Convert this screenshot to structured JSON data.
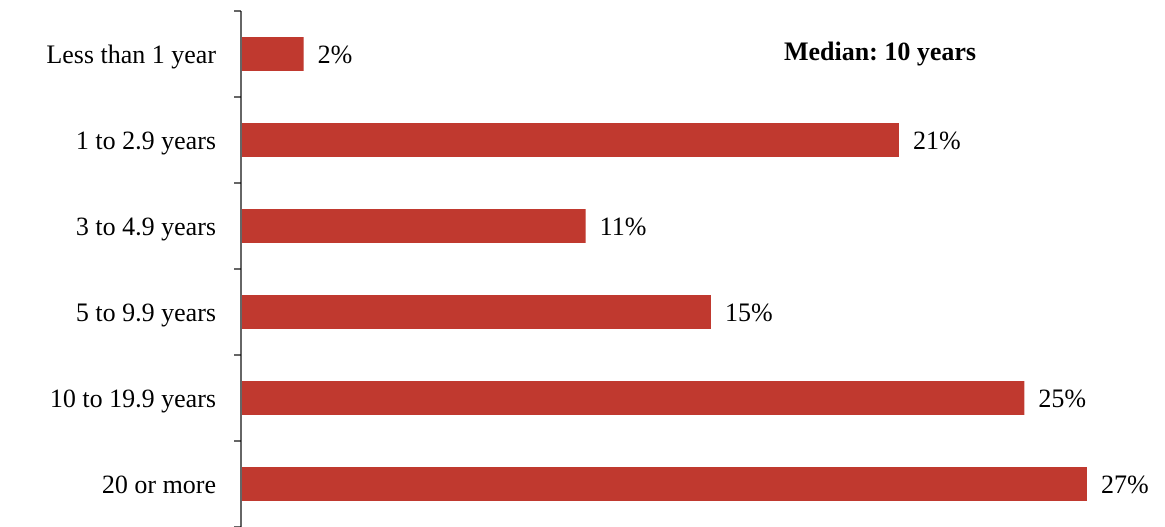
{
  "chart_data": {
    "type": "bar",
    "orientation": "horizontal",
    "categories": [
      "Less than 1 year",
      "1 to 2.9 years",
      "3 to 4.9 years",
      "5 to 9.9 years",
      "10 to 19.9 years",
      "20 or more"
    ],
    "values": [
      2,
      21,
      11,
      15,
      25,
      27
    ],
    "value_labels": [
      "2%",
      "21%",
      "11%",
      "15%",
      "25%",
      "27%"
    ],
    "annotation": "Median: 10 years",
    "title": "",
    "xlabel": "",
    "ylabel": "",
    "xlim": [
      0,
      27
    ],
    "grid": false,
    "bar_color": "#c0392f",
    "axis_color": "#000000"
  }
}
